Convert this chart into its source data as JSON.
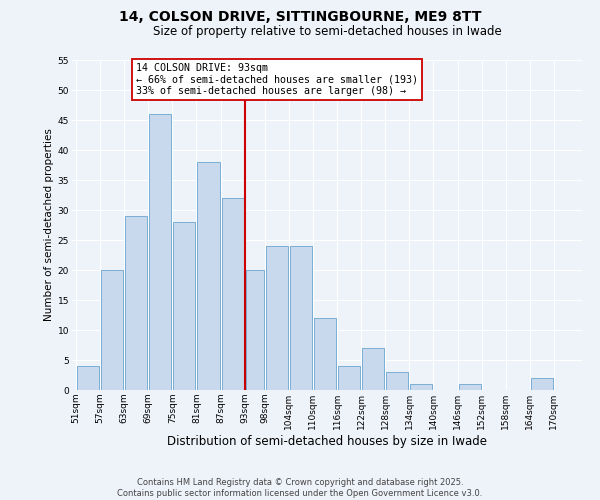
{
  "title": "14, COLSON DRIVE, SITTINGBOURNE, ME9 8TT",
  "subtitle": "Size of property relative to semi-detached houses in Iwade",
  "xlabel": "Distribution of semi-detached houses by size in Iwade",
  "ylabel": "Number of semi-detached properties",
  "bin_labels": [
    "51sqm",
    "57sqm",
    "63sqm",
    "69sqm",
    "75sqm",
    "81sqm",
    "87sqm",
    "93sqm",
    "98sqm",
    "104sqm",
    "110sqm",
    "116sqm",
    "122sqm",
    "128sqm",
    "134sqm",
    "140sqm",
    "146sqm",
    "152sqm",
    "158sqm",
    "164sqm",
    "170sqm"
  ],
  "bin_edges": [
    51,
    57,
    63,
    69,
    75,
    81,
    87,
    93,
    98,
    104,
    110,
    116,
    122,
    128,
    134,
    140,
    146,
    152,
    158,
    164,
    170,
    176
  ],
  "counts": [
    4,
    20,
    29,
    46,
    28,
    38,
    32,
    20,
    24,
    24,
    12,
    4,
    7,
    3,
    1,
    0,
    1,
    0,
    0,
    2,
    0
  ],
  "bar_color": "#c8d9ee",
  "bar_edge_color": "#7aaed6",
  "vline_x": 93,
  "vline_color": "#cc0000",
  "annotation_title": "14 COLSON DRIVE: 93sqm",
  "annotation_line1": "← 66% of semi-detached houses are smaller (193)",
  "annotation_line2": "33% of semi-detached houses are larger (98) →",
  "annotation_box_color": "#ffffff",
  "annotation_box_edge": "#cc0000",
  "ylim": [
    0,
    55
  ],
  "yticks": [
    0,
    5,
    10,
    15,
    20,
    25,
    30,
    35,
    40,
    45,
    50,
    55
  ],
  "footer_line1": "Contains HM Land Registry data © Crown copyright and database right 2025.",
  "footer_line2": "Contains public sector information licensed under the Open Government Licence v3.0.",
  "bg_color": "#eef2f9",
  "grid_color": "#ffffff",
  "title_fontsize": 10,
  "subtitle_fontsize": 8.5,
  "tick_fontsize": 6.5,
  "ylabel_fontsize": 7.5,
  "xlabel_fontsize": 8.5,
  "footer_fontsize": 6
}
